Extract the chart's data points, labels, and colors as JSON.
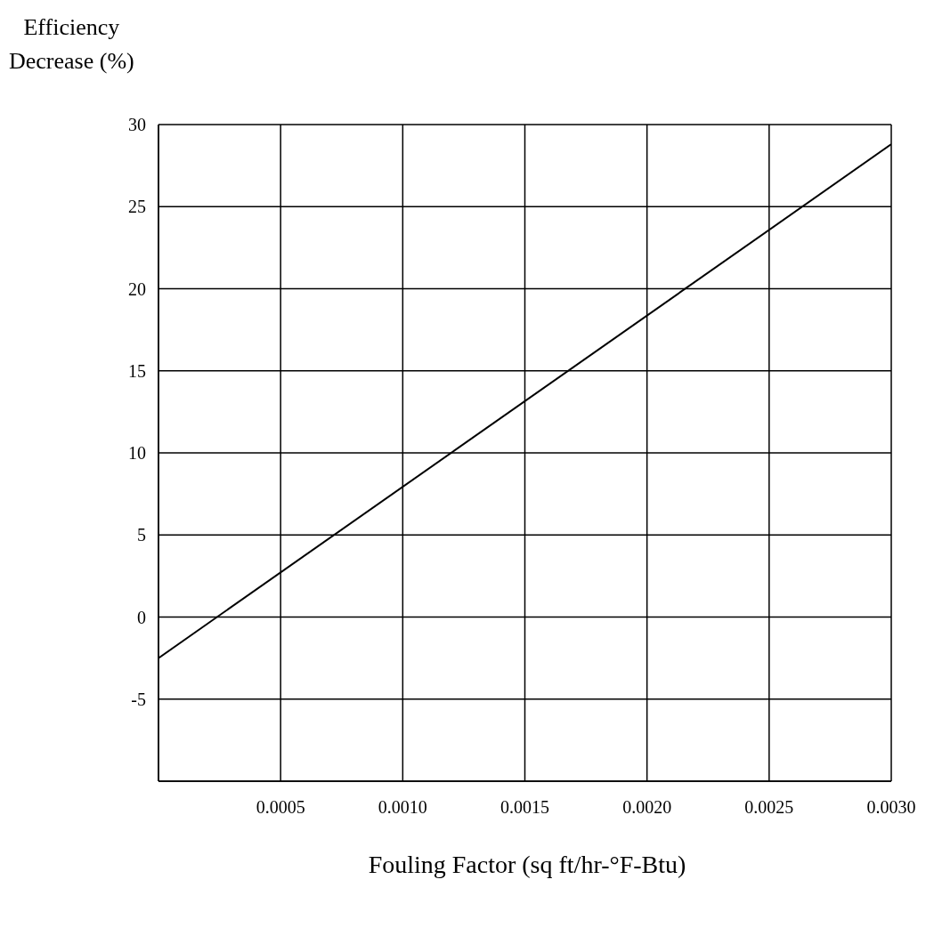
{
  "chart_data": {
    "type": "line",
    "xlabel": "Fouling Factor (sq ft/hr-°F-Btu)",
    "ylabel": "Efficiency\nDecrease (%)",
    "x": [
      0,
      0.003
    ],
    "series": [
      {
        "color": "#000000",
        "values": [
          -2.5,
          28.8
        ]
      }
    ],
    "xlim": [
      0,
      0.003
    ],
    "xticks": [
      {
        "value": 0.0005,
        "label": "0.0005"
      },
      {
        "value": 0.001,
        "label": "0.0010"
      },
      {
        "value": 0.0015,
        "label": "0.0015"
      },
      {
        "value": 0.002,
        "label": "0.0020"
      },
      {
        "value": 0.0025,
        "label": "0.0025"
      },
      {
        "value": 0.003,
        "label": "0.0030"
      }
    ],
    "ylim": [
      -10,
      30
    ],
    "yticks": [
      -5,
      0,
      5,
      10,
      15,
      20,
      25,
      30
    ],
    "grid": true,
    "marker": "none",
    "line_style": "solid"
  }
}
